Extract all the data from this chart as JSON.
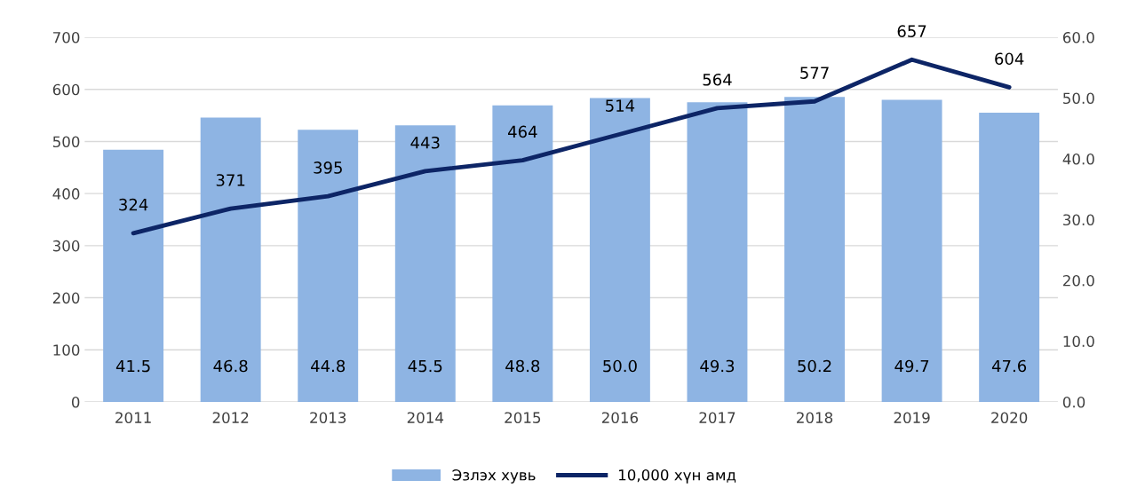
{
  "chart_data": {
    "type": "bar",
    "categories": [
      "2011",
      "2012",
      "2013",
      "2014",
      "2015",
      "2016",
      "2017",
      "2018",
      "2019",
      "2020"
    ],
    "series": [
      {
        "name": "Эзлэх хувь",
        "axis": "y2",
        "color": "#8eb4e3",
        "values": [
          41.5,
          46.8,
          44.8,
          45.5,
          48.8,
          50.0,
          49.3,
          50.2,
          49.7,
          47.6
        ],
        "value_labels": [
          "41.5",
          "46.8",
          "44.8",
          "45.5",
          "48.8",
          "50.0",
          "49.3",
          "50.2",
          "49.7",
          "47.6"
        ]
      },
      {
        "name": "10,000 хүн амд",
        "type": "line",
        "axis": "y",
        "color": "#0d2566",
        "values": [
          324,
          371,
          395,
          443,
          464,
          514,
          564,
          577,
          657,
          604
        ]
      }
    ],
    "data_labels": true,
    "ylim": [
      0,
      700
    ],
    "yticks": [
      0,
      100,
      200,
      300,
      400,
      500,
      600,
      700
    ],
    "y2lim": [
      0,
      60
    ],
    "y2ticks": [
      {
        "value": 0,
        "label": "0.0"
      },
      {
        "value": 10,
        "label": "10.0"
      },
      {
        "value": 20,
        "label": "20.0"
      },
      {
        "value": 30,
        "label": "30.0"
      },
      {
        "value": 40,
        "label": "40.0"
      },
      {
        "value": 50,
        "label": "50.0"
      },
      {
        "value": 60,
        "label": "60.0"
      }
    ],
    "grid": "y",
    "legend": "bottom",
    "marker": "none",
    "line_style": "solid"
  }
}
